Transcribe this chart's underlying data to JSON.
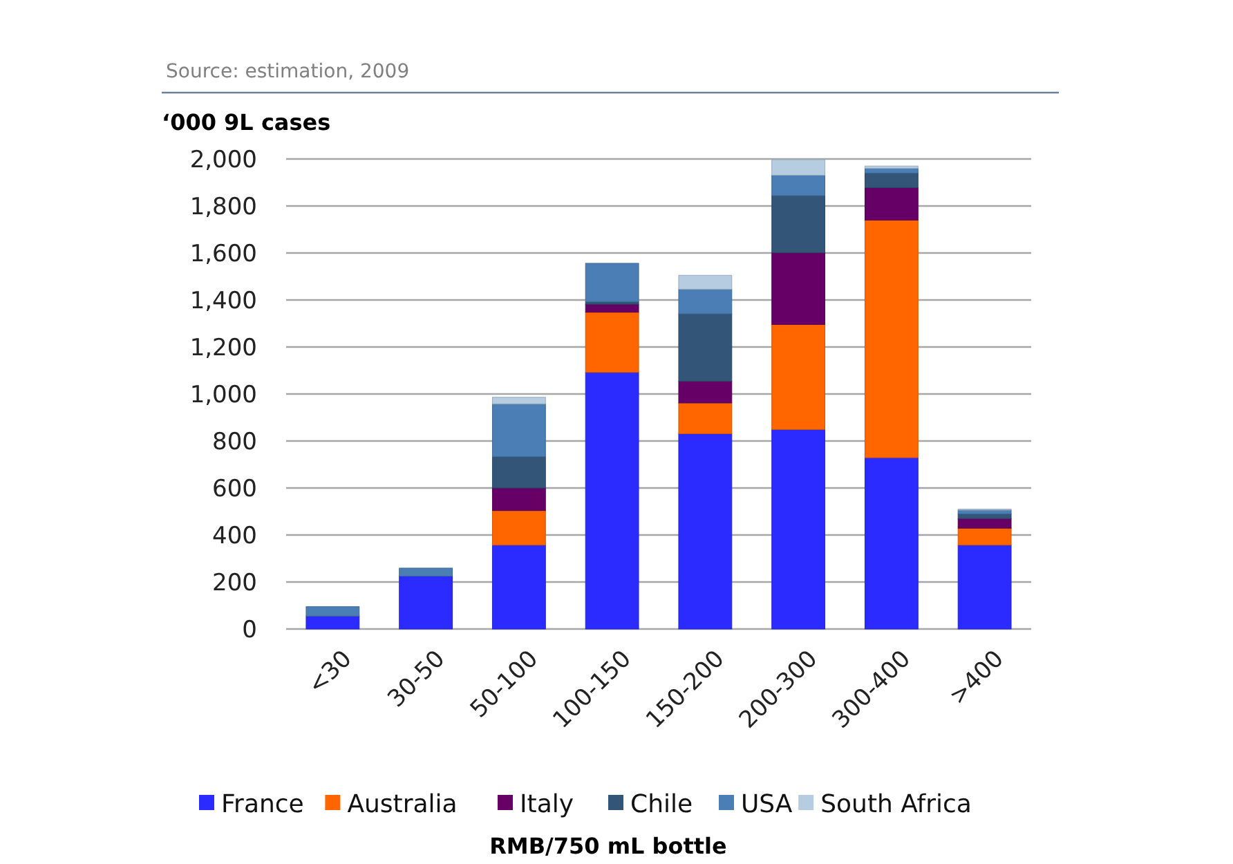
{
  "chart_data": {
    "type": "bar",
    "stacked": true,
    "ylabel": "‘000 9L cases",
    "xlabel": "RMB/750 mL bottle",
    "annotations": [
      "Source: estimation, 2009"
    ],
    "categories": [
      "<30",
      "30-50",
      "50-100",
      "100-150",
      "150-200",
      "200-300",
      "300-400",
      ">400"
    ],
    "series": [
      {
        "name": "France",
        "color": "#2b2bff",
        "values": [
          55,
          225,
          357,
          1092,
          831,
          849,
          729,
          357
        ]
      },
      {
        "name": "Australia",
        "color": "#ff6600",
        "values": [
          0,
          0,
          147,
          256,
          131,
          447,
          1011,
          72
        ]
      },
      {
        "name": "Italy",
        "color": "#660066",
        "values": [
          0,
          0,
          96,
          34,
          92,
          305,
          138,
          41
        ]
      },
      {
        "name": "Chile",
        "color": "#335577",
        "values": [
          0,
          0,
          133,
          10,
          287,
          243,
          62,
          20
        ]
      },
      {
        "name": "USA",
        "color": "#4a7eb5",
        "values": [
          40,
          34,
          225,
          164,
          105,
          87,
          20,
          16
        ]
      },
      {
        "name": "South Africa",
        "color": "#b6cce0",
        "values": [
          0,
          0,
          28,
          0,
          59,
          66,
          10,
          4
        ]
      }
    ],
    "ylim": [
      0,
      2000
    ],
    "yticks": [
      {
        "value": 0,
        "label": "0"
      },
      {
        "value": 200,
        "label": "200"
      },
      {
        "value": 400,
        "label": "400"
      },
      {
        "value": 600,
        "label": "600"
      },
      {
        "value": 800,
        "label": "800"
      },
      {
        "value": 1000,
        "label": "1,000"
      },
      {
        "value": 1200,
        "label": "1,200"
      },
      {
        "value": 1400,
        "label": "1,400"
      },
      {
        "value": 1600,
        "label": "1,600"
      },
      {
        "value": 1800,
        "label": "1,800"
      },
      {
        "value": 2000,
        "label": "2,000"
      }
    ],
    "grid": "y",
    "legend": "bottom"
  }
}
